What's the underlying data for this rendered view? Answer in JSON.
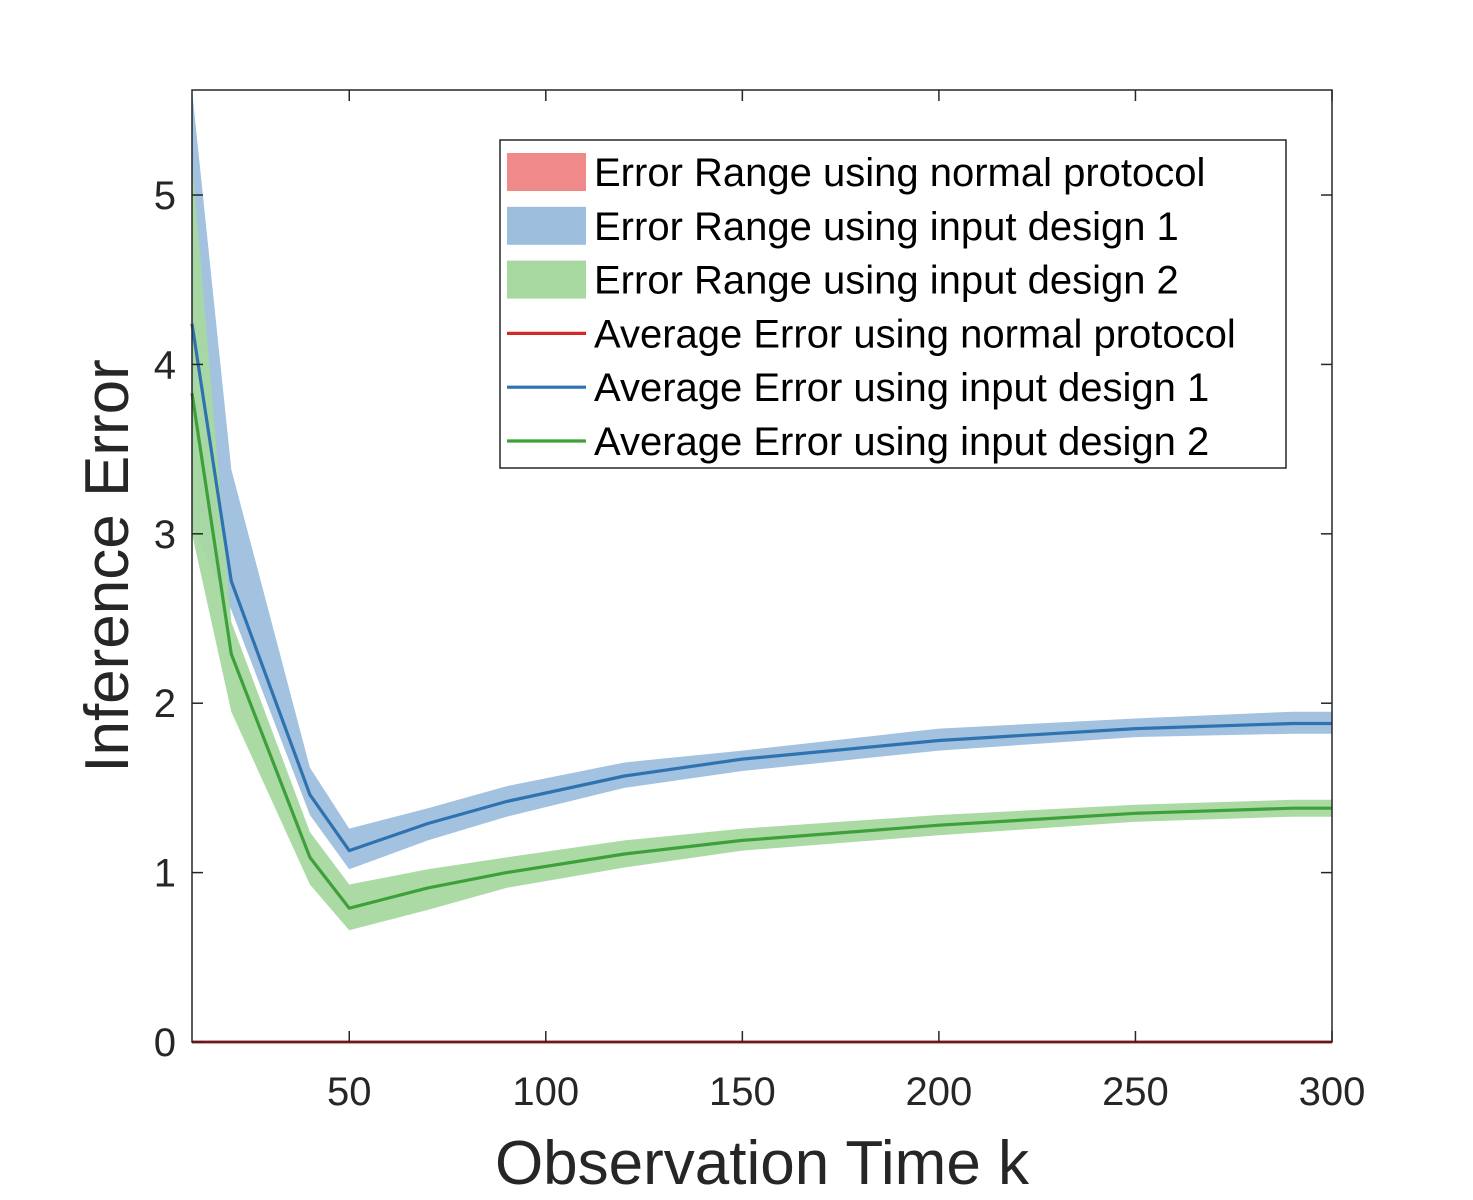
{
  "chart_data": {
    "type": "line",
    "xlabel": "Observation Time k",
    "ylabel": "Inference Error",
    "xlim": [
      10,
      300
    ],
    "ylim": [
      0,
      5.62
    ],
    "xticks": [
      50,
      100,
      150,
      200,
      250,
      300
    ],
    "yticks": [
      0,
      1,
      2,
      3,
      4,
      5
    ],
    "x": [
      10,
      20,
      40,
      50,
      70,
      90,
      120,
      150,
      200,
      250,
      290,
      300
    ],
    "legend_position": "top-right",
    "grid": false,
    "series": [
      {
        "name": "Average Error using normal protocol",
        "kind": "line",
        "color": "#d62728",
        "values": [
          0,
          0,
          0,
          0,
          0,
          0,
          0,
          0,
          0,
          0,
          0,
          0
        ]
      },
      {
        "name": "Average Error using input design 1",
        "kind": "line",
        "color": "#2f72b0",
        "values": [
          4.24,
          2.72,
          1.46,
          1.13,
          1.29,
          1.42,
          1.57,
          1.67,
          1.78,
          1.85,
          1.88,
          1.88
        ]
      },
      {
        "name": "Average Error using input design 2",
        "kind": "line",
        "color": "#3ea03a",
        "values": [
          3.83,
          2.29,
          1.09,
          0.79,
          0.91,
          1.0,
          1.11,
          1.19,
          1.28,
          1.35,
          1.38,
          1.38
        ]
      }
    ],
    "bands": [
      {
        "name": "Error Range using normal protocol",
        "color": "#f08a8a",
        "lower": [
          0,
          0,
          0,
          0,
          0,
          0,
          0,
          0,
          0,
          0,
          0,
          0
        ],
        "upper": [
          0,
          0,
          0,
          0,
          0,
          0,
          0,
          0,
          0,
          0,
          0,
          0
        ]
      },
      {
        "name": "Error Range using input design 1",
        "color": "#9dbfdd",
        "lower": [
          3.05,
          2.55,
          1.34,
          1.02,
          1.19,
          1.33,
          1.5,
          1.6,
          1.72,
          1.8,
          1.82,
          1.82
        ],
        "upper": [
          5.62,
          3.38,
          1.62,
          1.26,
          1.38,
          1.51,
          1.65,
          1.72,
          1.85,
          1.91,
          1.95,
          1.95
        ]
      },
      {
        "name": "Error Range using input design 2",
        "color": "#a6d8a0",
        "lower": [
          3.0,
          1.95,
          0.93,
          0.66,
          0.78,
          0.91,
          1.03,
          1.13,
          1.22,
          1.3,
          1.33,
          1.33
        ],
        "upper": [
          5.2,
          2.48,
          1.24,
          0.93,
          1.02,
          1.09,
          1.19,
          1.26,
          1.34,
          1.4,
          1.43,
          1.43
        ]
      }
    ]
  }
}
